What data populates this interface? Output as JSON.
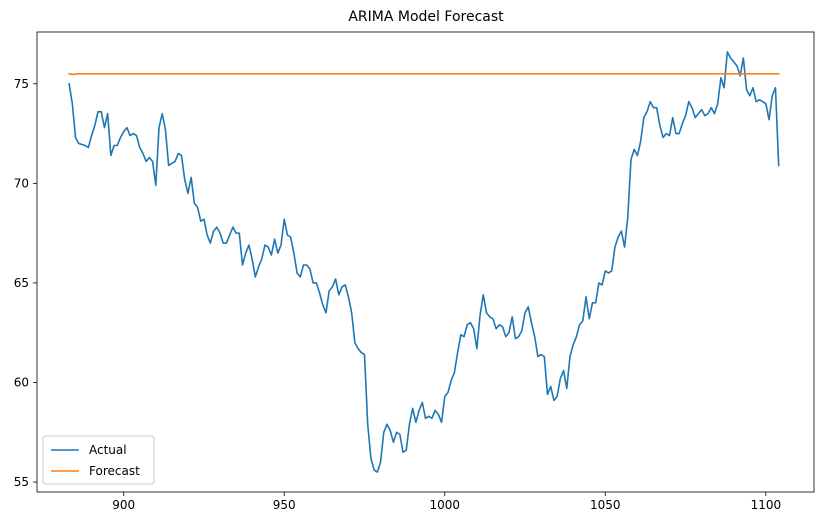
{
  "chart_data": {
    "type": "line",
    "title": "ARIMA Model Forecast",
    "xlabel": "",
    "ylabel": "",
    "xlim": [
      873,
      1115
    ],
    "ylim": [
      54.5,
      77.6
    ],
    "xticks": [
      900,
      950,
      1000,
      1050,
      1100
    ],
    "yticks": [
      55,
      60,
      65,
      70,
      75
    ],
    "grid": false,
    "legend_position": "lower-left",
    "series": [
      {
        "name": "Actual",
        "color": "#1f77b4",
        "x_start": 883,
        "x_step": 1,
        "values": [
          75.0,
          74.0,
          72.3,
          72.0,
          71.95,
          71.9,
          71.8,
          72.4,
          72.9,
          73.6,
          73.6,
          72.8,
          73.5,
          71.4,
          71.9,
          71.9,
          72.3,
          72.6,
          72.8,
          72.4,
          72.5,
          72.4,
          71.8,
          71.5,
          71.1,
          71.3,
          71.1,
          69.9,
          72.8,
          73.5,
          72.7,
          70.9,
          71.0,
          71.1,
          71.5,
          71.4,
          70.2,
          69.5,
          70.3,
          69.0,
          68.8,
          68.1,
          68.2,
          67.4,
          67.0,
          67.6,
          67.8,
          67.5,
          67.0,
          67.0,
          67.4,
          67.8,
          67.5,
          67.5,
          65.9,
          66.5,
          66.9,
          66.2,
          65.3,
          65.8,
          66.2,
          66.9,
          66.8,
          66.4,
          67.2,
          66.5,
          66.9,
          68.2,
          67.4,
          67.3,
          66.5,
          65.5,
          65.3,
          65.9,
          65.9,
          65.7,
          65.0,
          65.0,
          64.5,
          63.9,
          63.5,
          64.6,
          64.8,
          65.2,
          64.4,
          64.8,
          64.9,
          64.3,
          63.5,
          62.0,
          61.7,
          61.5,
          61.4,
          57.9,
          56.2,
          55.6,
          55.5,
          56.0,
          57.5,
          57.9,
          57.6,
          57.0,
          57.5,
          57.4,
          56.5,
          56.6,
          57.9,
          58.7,
          58.0,
          58.6,
          59.0,
          58.2,
          58.3,
          58.2,
          58.6,
          58.4,
          58.0,
          59.3,
          59.5,
          60.1,
          60.5,
          61.5,
          62.4,
          62.3,
          62.9,
          63.0,
          62.7,
          61.7,
          63.4,
          64.4,
          63.5,
          63.3,
          63.2,
          62.7,
          62.9,
          62.8,
          62.3,
          62.5,
          63.3,
          62.2,
          62.3,
          62.6,
          63.5,
          63.8,
          63.0,
          62.3,
          61.3,
          61.4,
          61.3,
          59.4,
          59.8,
          59.1,
          59.3,
          60.2,
          60.6,
          59.7,
          61.3,
          61.9,
          62.3,
          62.9,
          63.1,
          64.3,
          63.2,
          64.0,
          64.0,
          65.0,
          64.9,
          65.6,
          65.5,
          65.6,
          66.8,
          67.3,
          67.6,
          66.8,
          68.3,
          71.2,
          71.7,
          71.4,
          72.1,
          73.3,
          73.6,
          74.1,
          73.8,
          73.8,
          72.9,
          72.3,
          72.5,
          72.4,
          73.3,
          72.5,
          72.5,
          73.0,
          73.4,
          74.1,
          73.8,
          73.3,
          73.5,
          73.7,
          73.4,
          73.5,
          73.8,
          73.5,
          74.0,
          75.3,
          74.8,
          76.6,
          76.3,
          76.1,
          75.9,
          75.4,
          76.3,
          74.7,
          74.4,
          74.8,
          74.1,
          74.2,
          74.1,
          74.0,
          73.2,
          74.4,
          74.8,
          70.9
        ]
      },
      {
        "name": "Forecast",
        "color": "#ff7f0e",
        "x": [
          883,
          884,
          886,
          1104
        ],
        "values": [
          75.5,
          75.47,
          75.5,
          75.5
        ]
      }
    ]
  }
}
